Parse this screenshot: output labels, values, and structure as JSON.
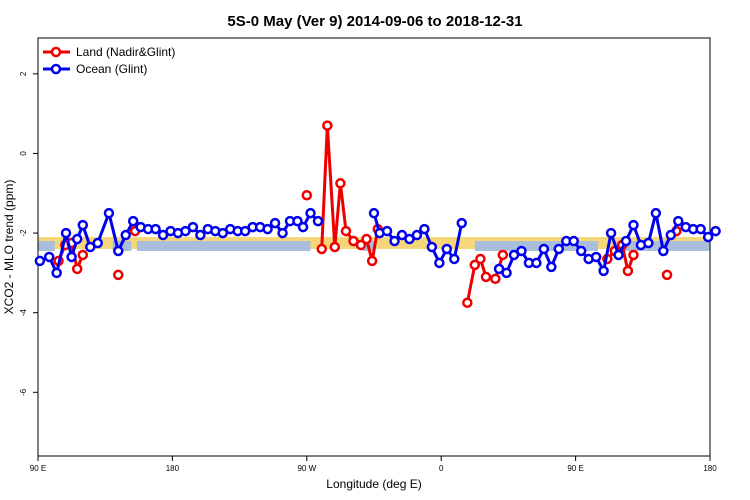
{
  "chart_data": {
    "type": "line",
    "title": "5S-0 May (Ver 9)   2014-09-06 to 2018-12-31",
    "xlabel": "Longitude (deg E)",
    "ylabel": "XCO2 - MLO trend (ppm)",
    "xlim": [
      0,
      18
    ],
    "ylim": [
      -7.6,
      2.9
    ],
    "x_ticks": [
      {
        "value": 0,
        "label": "90 E"
      },
      {
        "value": 3.6,
        "label": "180"
      },
      {
        "value": 7.2,
        "label": "90 W"
      },
      {
        "value": 10.8,
        "label": "0"
      },
      {
        "value": 14.4,
        "label": "90 E"
      },
      {
        "value": 18,
        "label": "180"
      }
    ],
    "y_ticks": [
      {
        "value": 2,
        "label": "2"
      },
      {
        "value": 0,
        "label": "0"
      },
      {
        "value": -2,
        "label": "-2"
      },
      {
        "value": -4,
        "label": "-4"
      },
      {
        "value": -6,
        "label": "-6"
      }
    ],
    "grid": false,
    "legend_position": "top-left",
    "bands": [
      {
        "color": "#f5d77a",
        "y0": -2.1,
        "y1": -2.4,
        "x0": 0,
        "x1": 18
      },
      {
        "color": "#a9bedd",
        "y0": -2.2,
        "y1": -2.45,
        "segments": [
          [
            0,
            0.45
          ],
          [
            2.0,
            2.5
          ],
          [
            2.65,
            7.3
          ],
          [
            8.7,
            9.0
          ],
          [
            11.7,
            15.0
          ],
          [
            15.5,
            18
          ]
        ]
      }
    ],
    "series": [
      {
        "name": "Land (Nadir&Glint)",
        "color": "#ee0000",
        "segments": [
          [
            [
              0.55,
              -2.7
            ],
            [
              0.73,
              -2.3
            ],
            [
              0.9,
              -2.25
            ],
            [
              1.05,
              -2.9
            ],
            [
              1.2,
              -2.55
            ]
          ],
          [
            [
              2.15,
              -3.05
            ]
          ],
          [
            [
              2.6,
              -1.95
            ]
          ],
          [
            [
              7.2,
              -1.05
            ]
          ],
          [
            [
              7.6,
              -2.4
            ],
            [
              7.75,
              0.7
            ],
            [
              7.95,
              -2.35
            ],
            [
              8.1,
              -0.75
            ],
            [
              8.25,
              -1.95
            ],
            [
              8.45,
              -2.2
            ],
            [
              8.65,
              -2.3
            ],
            [
              8.8,
              -2.15
            ],
            [
              8.95,
              -2.7
            ],
            [
              9.1,
              -1.9
            ]
          ],
          [
            [
              11.5,
              -3.75
            ],
            [
              11.7,
              -2.8
            ],
            [
              11.85,
              -2.65
            ],
            [
              12.0,
              -3.1
            ],
            [
              12.25,
              -3.15
            ],
            [
              12.45,
              -2.55
            ]
          ],
          [
            [
              15.25,
              -2.65
            ],
            [
              15.45,
              -2.45
            ],
            [
              15.65,
              -2.3
            ],
            [
              15.8,
              -2.95
            ],
            [
              15.95,
              -2.55
            ]
          ],
          [
            [
              16.85,
              -3.05
            ]
          ],
          [
            [
              17.1,
              -1.95
            ]
          ]
        ]
      },
      {
        "name": "Ocean (Glint)",
        "color": "#0000ee",
        "segments": [
          [
            [
              0.05,
              -2.7
            ],
            [
              0.3,
              -2.6
            ],
            [
              0.5,
              -3.0
            ],
            [
              0.75,
              -2.0
            ],
            [
              0.9,
              -2.6
            ],
            [
              1.05,
              -2.15
            ],
            [
              1.2,
              -1.8
            ],
            [
              1.4,
              -2.35
            ],
            [
              1.6,
              -2.25
            ],
            [
              1.9,
              -1.5
            ],
            [
              2.15,
              -2.45
            ],
            [
              2.35,
              -2.05
            ],
            [
              2.55,
              -1.7
            ],
            [
              2.75,
              -1.85
            ],
            [
              2.95,
              -1.9
            ],
            [
              3.15,
              -1.9
            ],
            [
              3.35,
              -2.05
            ],
            [
              3.55,
              -1.95
            ],
            [
              3.75,
              -2.0
            ],
            [
              3.95,
              -1.95
            ],
            [
              4.15,
              -1.85
            ],
            [
              4.35,
              -2.05
            ],
            [
              4.55,
              -1.9
            ],
            [
              4.75,
              -1.95
            ],
            [
              4.95,
              -2.0
            ],
            [
              5.15,
              -1.9
            ],
            [
              5.35,
              -1.95
            ],
            [
              5.55,
              -1.95
            ],
            [
              5.75,
              -1.85
            ],
            [
              5.95,
              -1.85
            ],
            [
              6.15,
              -1.9
            ],
            [
              6.35,
              -1.75
            ],
            [
              6.55,
              -2.0
            ],
            [
              6.75,
              -1.7
            ],
            [
              6.95,
              -1.7
            ],
            [
              7.1,
              -1.85
            ],
            [
              7.3,
              -1.5
            ],
            [
              7.5,
              -1.7
            ]
          ],
          [
            [
              9.0,
              -1.5
            ],
            [
              9.15,
              -2.0
            ],
            [
              9.35,
              -1.95
            ],
            [
              9.55,
              -2.2
            ],
            [
              9.75,
              -2.05
            ],
            [
              9.95,
              -2.15
            ],
            [
              10.15,
              -2.05
            ],
            [
              10.35,
              -1.9
            ],
            [
              10.55,
              -2.35
            ],
            [
              10.75,
              -2.75
            ],
            [
              10.95,
              -2.4
            ],
            [
              11.15,
              -2.65
            ],
            [
              11.35,
              -1.75
            ]
          ],
          [
            [
              12.35,
              -2.9
            ],
            [
              12.55,
              -3.0
            ],
            [
              12.75,
              -2.55
            ],
            [
              12.95,
              -2.45
            ],
            [
              13.15,
              -2.75
            ],
            [
              13.35,
              -2.75
            ],
            [
              13.55,
              -2.4
            ],
            [
              13.75,
              -2.85
            ],
            [
              13.95,
              -2.4
            ],
            [
              14.15,
              -2.2
            ],
            [
              14.35,
              -2.2
            ],
            [
              14.55,
              -2.45
            ],
            [
              14.75,
              -2.65
            ],
            [
              14.95,
              -2.6
            ],
            [
              15.15,
              -2.95
            ],
            [
              15.35,
              -2.0
            ],
            [
              15.55,
              -2.55
            ],
            [
              15.75,
              -2.2
            ],
            [
              15.95,
              -1.8
            ],
            [
              16.15,
              -2.3
            ],
            [
              16.35,
              -2.25
            ],
            [
              16.55,
              -1.5
            ],
            [
              16.75,
              -2.45
            ],
            [
              16.95,
              -2.05
            ],
            [
              17.15,
              -1.7
            ],
            [
              17.35,
              -1.85
            ],
            [
              17.55,
              -1.9
            ],
            [
              17.75,
              -1.9
            ],
            [
              17.95,
              -2.1
            ],
            [
              18.15,
              -1.95
            ]
          ]
        ]
      }
    ]
  }
}
